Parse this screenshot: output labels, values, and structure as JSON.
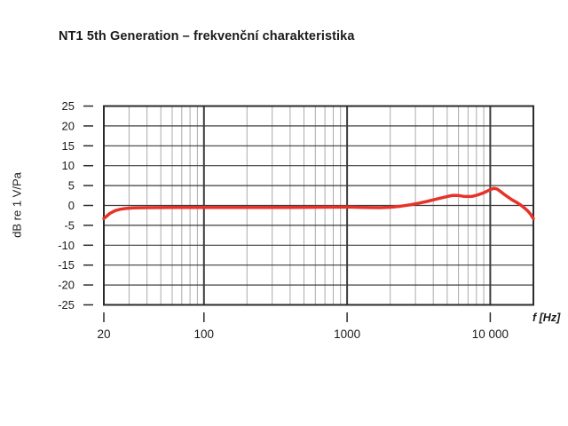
{
  "page": {
    "background": "#ffffff"
  },
  "chart_data": {
    "type": "line",
    "title": "NT1 5th Generation – frekvenční charakteristika",
    "xlabel": "f [Hz]",
    "ylabel": "dB re 1 V/Pa",
    "x_scale": "log",
    "xlim": [
      20,
      20000
    ],
    "ylim": [
      -25,
      25
    ],
    "y_ticks": [
      25,
      20,
      15,
      10,
      5,
      0,
      -5,
      -10,
      -15,
      -20,
      -25
    ],
    "x_ticks": [
      {
        "value": 20,
        "label": "20"
      },
      {
        "value": 100,
        "label": "100"
      },
      {
        "value": 1000,
        "label": "1000"
      },
      {
        "value": 10000,
        "label": "10 000"
      }
    ],
    "grid": "both",
    "legend": "none",
    "colors": {
      "curve": "#e6332a",
      "grid_minor": "#ababab",
      "grid_major": "#3c3c3c",
      "frame": "#2b2b2b",
      "text": "#1a1a1a"
    },
    "series": [
      {
        "name": "frequency response",
        "points": [
          [
            20,
            -3.3
          ],
          [
            22,
            -2.0
          ],
          [
            24,
            -1.3
          ],
          [
            26,
            -0.95
          ],
          [
            28,
            -0.78
          ],
          [
            32,
            -0.62
          ],
          [
            40,
            -0.55
          ],
          [
            60,
            -0.52
          ],
          [
            100,
            -0.5
          ],
          [
            160,
            -0.5
          ],
          [
            250,
            -0.5
          ],
          [
            400,
            -0.48
          ],
          [
            630,
            -0.45
          ],
          [
            800,
            -0.42
          ],
          [
            1000,
            -0.4
          ],
          [
            1300,
            -0.48
          ],
          [
            1700,
            -0.55
          ],
          [
            2000,
            -0.45
          ],
          [
            2400,
            -0.15
          ],
          [
            2800,
            0.2
          ],
          [
            3200,
            0.6
          ],
          [
            3600,
            1.0
          ],
          [
            4000,
            1.4
          ],
          [
            4500,
            1.85
          ],
          [
            5000,
            2.25
          ],
          [
            5500,
            2.55
          ],
          [
            6000,
            2.5
          ],
          [
            6500,
            2.3
          ],
          [
            7000,
            2.25
          ],
          [
            7500,
            2.3
          ],
          [
            8000,
            2.55
          ],
          [
            8500,
            2.85
          ],
          [
            9000,
            3.2
          ],
          [
            9500,
            3.6
          ],
          [
            10000,
            4.0
          ],
          [
            10600,
            4.3
          ],
          [
            11200,
            4.1
          ],
          [
            11800,
            3.5
          ],
          [
            12500,
            2.8
          ],
          [
            13300,
            2.1
          ],
          [
            14200,
            1.4
          ],
          [
            15200,
            0.8
          ],
          [
            16200,
            0.2
          ],
          [
            17300,
            -0.6
          ],
          [
            18300,
            -1.4
          ],
          [
            19200,
            -2.3
          ],
          [
            20000,
            -3.3
          ]
        ]
      }
    ]
  }
}
